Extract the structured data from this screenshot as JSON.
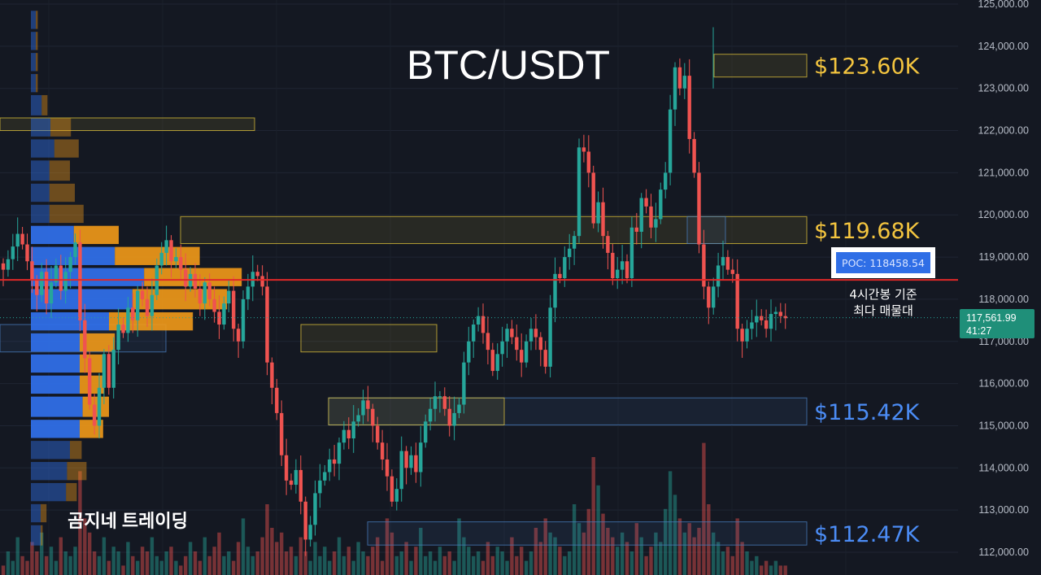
{
  "chart_data": {
    "type": "candlestick",
    "title": "BTC/USDT",
    "watermark": "곰지네 트레이딩",
    "y_axis": {
      "ticks": [
        112000,
        113000,
        114000,
        115000,
        116000,
        117000,
        118000,
        119000,
        120000,
        121000,
        122000,
        123000,
        124000,
        125000
      ],
      "tick_labels": [
        "112,000.00",
        "113,000.00",
        "114,000.00",
        "115,000.00",
        "116,000.00",
        "117,000.00",
        "118,000.00",
        "119,000.00",
        "120,000.00",
        "121,000.00",
        "122,000.00",
        "123,000.00",
        "124,000.00",
        "125,000.00"
      ],
      "range": [
        111850,
        125050
      ]
    },
    "last_price": {
      "value": 117561.99,
      "label": "117,561.99",
      "countdown": "41:27"
    },
    "poc": {
      "value": 118458.54,
      "label": "POC: 118458.54",
      "note_line1": "4시간봉 기준",
      "note_line2": "최다 매물대"
    },
    "zones": [
      {
        "low": 123270,
        "high": 123810,
        "color": "#e0c33a",
        "label": "$123.60K",
        "label_color": "#f4c53f"
      },
      {
        "low": 119320,
        "high": 119960,
        "color": "#e0c33a",
        "label": "$119.68K",
        "label_color": "#f4c53f"
      },
      {
        "low": 115020,
        "high": 115660,
        "color": "#4a7fc0",
        "label": "$115.42K",
        "label_color": "#4b8cf5"
      },
      {
        "low": 112170,
        "high": 112720,
        "color": "#4a7fc0",
        "label": "$112.47K",
        "label_color": "#4b8cf5"
      }
    ],
    "volume_profile": {
      "rows": [
        {
          "low": 124400,
          "high": 124850,
          "buy": 0.05,
          "sell": 0.02
        },
        {
          "low": 123900,
          "high": 124350,
          "buy": 0.05,
          "sell": 0.02
        },
        {
          "low": 123400,
          "high": 123850,
          "buy": 0.05,
          "sell": 0.02
        },
        {
          "low": 122900,
          "high": 123350,
          "buy": 0.05,
          "sell": 0.02
        },
        {
          "low": 122350,
          "high": 122850,
          "buy": 0.11,
          "sell": 0.06
        },
        {
          "low": 121850,
          "high": 122300,
          "buy": 0.2,
          "sell": 0.21
        },
        {
          "low": 121350,
          "high": 121800,
          "buy": 0.24,
          "sell": 0.25
        },
        {
          "low": 120800,
          "high": 121300,
          "buy": 0.19,
          "sell": 0.21
        },
        {
          "low": 120300,
          "high": 120750,
          "buy": 0.19,
          "sell": 0.26
        },
        {
          "low": 119800,
          "high": 120250,
          "buy": 0.19,
          "sell": 0.35
        },
        {
          "low": 119300,
          "high": 119750,
          "buy": 0.44,
          "sell": 0.46
        },
        {
          "low": 118800,
          "high": 119250,
          "buy": 0.86,
          "sell": 0.87
        },
        {
          "low": 118300,
          "high": 118750,
          "buy": 1.16,
          "sell": 1.0
        },
        {
          "low": 117750,
          "high": 118250,
          "buy": 1.04,
          "sell": 0.97
        },
        {
          "low": 117250,
          "high": 117700,
          "buy": 0.8,
          "sell": 0.86
        },
        {
          "low": 116750,
          "high": 117200,
          "buy": 0.5,
          "sell": 0.36
        },
        {
          "low": 116250,
          "high": 116700,
          "buy": 0.5,
          "sell": 0.25
        },
        {
          "low": 115750,
          "high": 116200,
          "buy": 0.5,
          "sell": 0.25
        },
        {
          "low": 115200,
          "high": 115700,
          "buy": 0.53,
          "sell": 0.27
        },
        {
          "low": 114700,
          "high": 115150,
          "buy": 0.5,
          "sell": 0.24
        },
        {
          "low": 114200,
          "high": 114650,
          "buy": 0.4,
          "sell": 0.12
        },
        {
          "low": 113700,
          "high": 114150,
          "buy": 0.37,
          "sell": 0.2
        },
        {
          "low": 113200,
          "high": 113650,
          "buy": 0.36,
          "sell": 0.11
        },
        {
          "low": 112700,
          "high": 113150,
          "buy": 0.1,
          "sell": 0.06
        },
        {
          "low": 112150,
          "high": 112650,
          "buy": 0.1,
          "sell": 0.02
        }
      ]
    },
    "candles_closes": [
      118700,
      118950,
      119250,
      119550,
      119300,
      118900,
      118450,
      118100,
      118650,
      117900,
      118400,
      118800,
      118200,
      118650,
      119000,
      119350,
      117500,
      116600,
      115500,
      115000,
      115900,
      116700,
      115900,
      116800,
      117400,
      117200,
      117800,
      117500,
      118200,
      118000,
      117600,
      118100,
      118800,
      119100,
      119400,
      118900,
      119000,
      118700,
      118300,
      118600,
      118250,
      117900,
      118400,
      118000,
      117700,
      117400,
      117900,
      118200,
      117300,
      117000,
      118000,
      118300,
      118650,
      118550,
      118300,
      116500,
      115900,
      115300,
      114300,
      113700,
      113600,
      113950,
      113200,
      112300,
      112650,
      113400,
      113700,
      113900,
      114200,
      114100,
      114600,
      114900,
      114700,
      115100,
      115250,
      115600,
      115400,
      115000,
      114600,
      114200,
      113800,
      113200,
      113500,
      114400,
      114000,
      114300,
      113900,
      114600,
      115100,
      115400,
      115700,
      115700,
      115400,
      115000,
      115300,
      115500,
      116500,
      117000,
      117400,
      117600,
      117200,
      116800,
      116300,
      116700,
      117000,
      117300,
      117100,
      116800,
      116500,
      117000,
      117300,
      117100,
      116800,
      116400,
      117800,
      118600,
      118500,
      119000,
      119200,
      119500,
      121600,
      121500,
      121000,
      119800,
      120300,
      119500,
      119100,
      118500,
      118700,
      118900,
      118500,
      119700,
      119600,
      120400,
      120200,
      119700,
      119900,
      120600,
      121000,
      122500,
      123500,
      123000,
      123300,
      121800,
      121000,
      119300,
      118300,
      117800,
      118300,
      118800,
      119000,
      118700,
      118600,
      117300,
      117000,
      117300,
      117450,
      117600,
      117500,
      117300,
      117650,
      117700,
      117600,
      117550
    ],
    "volume_bars": [
      2,
      5,
      3,
      8,
      4,
      3,
      7,
      5,
      9,
      4,
      6,
      3,
      8,
      5,
      4,
      6,
      22,
      12,
      9,
      5,
      4,
      8,
      3,
      6,
      5,
      2,
      7,
      4,
      3,
      6,
      5,
      8,
      4,
      3,
      5,
      6,
      3,
      2,
      4,
      7,
      5,
      3,
      8,
      4,
      6,
      9,
      4,
      5,
      3,
      7,
      12,
      6,
      4,
      5,
      8,
      15,
      10,
      7,
      9,
      5,
      6,
      4,
      8,
      5,
      3,
      7,
      4,
      6,
      3,
      5,
      8,
      4,
      6,
      3,
      7,
      5,
      4,
      6,
      8,
      3,
      12,
      9,
      4,
      5,
      7,
      3,
      6,
      10,
      4,
      5,
      3,
      6,
      4,
      5,
      3,
      12,
      8,
      6,
      4,
      5,
      3,
      7,
      4,
      6,
      5,
      3,
      8,
      4,
      6,
      3,
      5,
      10,
      7,
      12,
      9,
      8,
      6,
      4,
      5,
      15,
      11,
      9,
      14,
      25,
      19,
      13,
      10,
      8,
      6,
      9,
      7,
      5,
      11,
      8,
      4,
      6,
      9,
      7,
      14,
      22,
      17,
      12,
      9,
      11,
      8,
      10,
      28,
      15,
      9,
      7,
      5,
      6,
      4,
      12,
      7,
      5,
      3,
      4,
      2,
      3,
      2,
      3,
      2,
      2
    ]
  }
}
